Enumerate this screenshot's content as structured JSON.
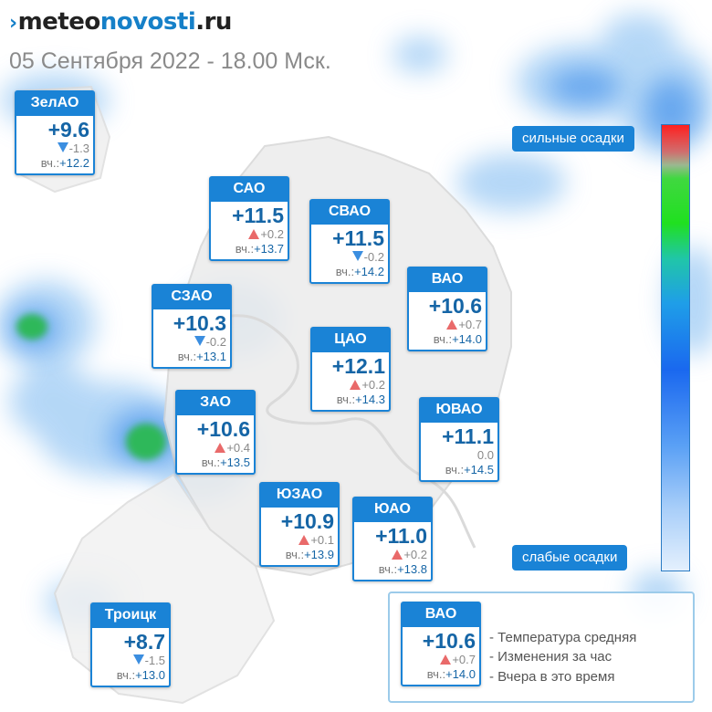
{
  "header": {
    "logo_mark": "›",
    "logo_part1": "meteo",
    "logo_part2": "novosti",
    "logo_part3": ".ru",
    "date_line": "05 Сентября 2022 - 18.00 Мск."
  },
  "yesterday_prefix": "вч.:",
  "districts": [
    {
      "name": "ЗелАО",
      "temp": "+9.6",
      "trend": "down",
      "change": "-1.3",
      "yesterday": "+12.2"
    },
    {
      "name": "САО",
      "temp": "+11.5",
      "trend": "up",
      "change": "+0.2",
      "yesterday": "+13.7"
    },
    {
      "name": "СВАО",
      "temp": "+11.5",
      "trend": "down",
      "change": "-0.2",
      "yesterday": "+14.2"
    },
    {
      "name": "ВАО",
      "temp": "+10.6",
      "trend": "up",
      "change": "+0.7",
      "yesterday": "+14.0"
    },
    {
      "name": "СЗАО",
      "temp": "+10.3",
      "trend": "down",
      "change": "-0.2",
      "yesterday": "+13.1"
    },
    {
      "name": "ЦАО",
      "temp": "+12.1",
      "trend": "up",
      "change": "+0.2",
      "yesterday": "+14.3"
    },
    {
      "name": "ЗАО",
      "temp": "+10.6",
      "trend": "up",
      "change": "+0.4",
      "yesterday": "+13.5"
    },
    {
      "name": "ЮВАО",
      "temp": "+11.1",
      "trend": "none",
      "change": "0.0",
      "yesterday": "+14.5"
    },
    {
      "name": "ЮЗАО",
      "temp": "+10.9",
      "trend": "up",
      "change": "+0.1",
      "yesterday": "+13.9"
    },
    {
      "name": "ЮАО",
      "temp": "+11.0",
      "trend": "up",
      "change": "+0.2",
      "yesterday": "+13.8"
    },
    {
      "name": "Троицк",
      "temp": "+8.7",
      "trend": "down",
      "change": "-1.5",
      "yesterday": "+13.0"
    }
  ],
  "precip_scale": {
    "high_label": "сильные осадки",
    "low_label": "слабые осадки"
  },
  "legend": {
    "sample": {
      "name": "ВАО",
      "temp": "+10.6",
      "trend": "up",
      "change": "+0.7",
      "yesterday": "+14.0"
    },
    "line1": "- Температура средняя",
    "line2": "- Изменения за час",
    "line3": "- Вчера в это время"
  },
  "colors": {
    "accent": "#1a83d6",
    "rise": "#e96a6a",
    "fall": "#3b8ee0",
    "precip_heavy": "#ff2020",
    "precip_medium": "#20e020",
    "precip_light": "#e4f0fd"
  }
}
